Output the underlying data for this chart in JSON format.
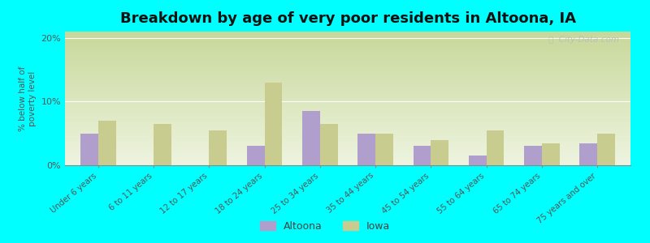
{
  "title": "Breakdown by age of very poor residents in Altoona, IA",
  "ylabel": "% below half of\npoverty level",
  "categories": [
    "Under 6 years",
    "6 to 11 years",
    "12 to 17 years",
    "18 to 24 years",
    "25 to 34 years",
    "35 to 44 years",
    "45 to 54 years",
    "55 to 64 years",
    "65 to 74 years",
    "75 years and over"
  ],
  "altoona_values": [
    5.0,
    0.0,
    0.0,
    3.0,
    8.5,
    5.0,
    3.0,
    1.5,
    3.0,
    3.5
  ],
  "iowa_values": [
    7.0,
    6.5,
    5.5,
    13.0,
    6.5,
    5.0,
    4.0,
    5.5,
    3.5,
    5.0
  ],
  "altoona_color": "#b09fcc",
  "iowa_color": "#c8cc8f",
  "background_color": "#00ffff",
  "plot_bg_top": "#c8d89a",
  "plot_bg_bottom": "#eef4e0",
  "ylim": [
    0,
    21
  ],
  "yticks": [
    0,
    10,
    20
  ],
  "ytick_labels": [
    "0%",
    "10%",
    "20%"
  ],
  "bar_width": 0.32,
  "title_fontsize": 13,
  "legend_labels": [
    "Altoona",
    "Iowa"
  ],
  "watermark": "ⓘ  City-Data.com"
}
